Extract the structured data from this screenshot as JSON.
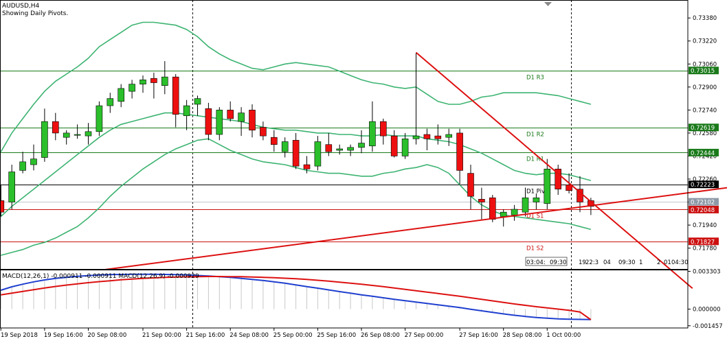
{
  "header": {
    "symbol": "AUDUSD,H4",
    "subtitle": "Showing Daily Pivots."
  },
  "macd_label": "MACD(12,26,1) -0.000911 -0.000911 MACD(12,26,9) -0.000929",
  "colors": {
    "bull": "#2bbf2b",
    "bear": "#ee1010",
    "bollinger": "#3cb371",
    "trend": "#dd1010",
    "resistance": "#1a7a1a",
    "support": "#cc1010",
    "pivot": "#000000",
    "macd_main": "#1f3fcf",
    "macd_signal": "#dd1010",
    "price_tag": "#8f9aa8"
  },
  "chart_data": [
    {
      "type": "candlestick",
      "title": "AUDUSD,H4",
      "ylim": [
        0.71635,
        0.73505
      ],
      "y_ticks": [
        "0.73380",
        "0.73220",
        "0.73060",
        "0.72900",
        "0.72740",
        "0.72580",
        "0.72420",
        "0.72260",
        "0.72100",
        "0.71940",
        "0.71780"
      ],
      "x_labels": [
        "19 Sep 2018",
        "19 Sep 16:00",
        "20 Sep 08:00",
        "21 Sep 00:00",
        "21 Sep 16:00",
        "24 Sep 08:00",
        "25 Sep 00:00",
        "25 Sep 16:00",
        "26 Sep 08:00",
        "27 Sep 00:00",
        "27 Sep 16:00",
        "28 Sep 08:00",
        "1 Oct 00:00"
      ],
      "candles": [
        {
          "o": 0.7211,
          "h": 0.7222,
          "l": 0.72,
          "c": 0.7203
        },
        {
          "o": 0.721,
          "h": 0.7236,
          "l": 0.7205,
          "c": 0.7231
        },
        {
          "o": 0.7232,
          "h": 0.7245,
          "l": 0.723,
          "c": 0.7238
        },
        {
          "o": 0.7236,
          "h": 0.725,
          "l": 0.7232,
          "c": 0.724
        },
        {
          "o": 0.7241,
          "h": 0.7275,
          "l": 0.7238,
          "c": 0.7266
        },
        {
          "o": 0.7266,
          "h": 0.7272,
          "l": 0.7253,
          "c": 0.7258
        },
        {
          "o": 0.7255,
          "h": 0.726,
          "l": 0.725,
          "c": 0.7258
        },
        {
          "o": 0.7257,
          "h": 0.7264,
          "l": 0.7254,
          "c": 0.7257
        },
        {
          "o": 0.7256,
          "h": 0.7265,
          "l": 0.725,
          "c": 0.7259
        },
        {
          "o": 0.7259,
          "h": 0.728,
          "l": 0.7256,
          "c": 0.7277
        },
        {
          "o": 0.7277,
          "h": 0.7286,
          "l": 0.7272,
          "c": 0.7282
        },
        {
          "o": 0.728,
          "h": 0.7292,
          "l": 0.7276,
          "c": 0.7289
        },
        {
          "o": 0.7287,
          "h": 0.7295,
          "l": 0.7282,
          "c": 0.7292
        },
        {
          "o": 0.7292,
          "h": 0.7298,
          "l": 0.7286,
          "c": 0.7295
        },
        {
          "o": 0.7296,
          "h": 0.73,
          "l": 0.7282,
          "c": 0.7293
        },
        {
          "o": 0.7291,
          "h": 0.7308,
          "l": 0.7285,
          "c": 0.7297
        },
        {
          "o": 0.7297,
          "h": 0.7299,
          "l": 0.7262,
          "c": 0.7271
        },
        {
          "o": 0.727,
          "h": 0.7281,
          "l": 0.726,
          "c": 0.7277
        },
        {
          "o": 0.7278,
          "h": 0.7284,
          "l": 0.727,
          "c": 0.7282
        },
        {
          "o": 0.7275,
          "h": 0.7279,
          "l": 0.7253,
          "c": 0.7257
        },
        {
          "o": 0.7257,
          "h": 0.7276,
          "l": 0.7253,
          "c": 0.7274
        },
        {
          "o": 0.7274,
          "h": 0.728,
          "l": 0.7266,
          "c": 0.7268
        },
        {
          "o": 0.7266,
          "h": 0.7276,
          "l": 0.7256,
          "c": 0.7272
        },
        {
          "o": 0.7274,
          "h": 0.7278,
          "l": 0.7255,
          "c": 0.726
        },
        {
          "o": 0.7262,
          "h": 0.7266,
          "l": 0.7253,
          "c": 0.7256
        },
        {
          "o": 0.7255,
          "h": 0.726,
          "l": 0.7245,
          "c": 0.725
        },
        {
          "o": 0.7245,
          "h": 0.7255,
          "l": 0.7241,
          "c": 0.7252
        },
        {
          "o": 0.7253,
          "h": 0.7258,
          "l": 0.7233,
          "c": 0.7235
        },
        {
          "o": 0.7236,
          "h": 0.7242,
          "l": 0.723,
          "c": 0.7233
        },
        {
          "o": 0.7235,
          "h": 0.7256,
          "l": 0.7232,
          "c": 0.7252
        },
        {
          "o": 0.725,
          "h": 0.7258,
          "l": 0.7242,
          "c": 0.7245
        },
        {
          "o": 0.7246,
          "h": 0.725,
          "l": 0.7243,
          "c": 0.7247
        },
        {
          "o": 0.7246,
          "h": 0.725,
          "l": 0.7242,
          "c": 0.7248
        },
        {
          "o": 0.7248,
          "h": 0.726,
          "l": 0.7244,
          "c": 0.7251
        },
        {
          "o": 0.7249,
          "h": 0.728,
          "l": 0.7245,
          "c": 0.7266
        },
        {
          "o": 0.7266,
          "h": 0.7268,
          "l": 0.725,
          "c": 0.7256
        },
        {
          "o": 0.7256,
          "h": 0.726,
          "l": 0.7241,
          "c": 0.7242
        },
        {
          "o": 0.7242,
          "h": 0.7258,
          "l": 0.724,
          "c": 0.7254
        },
        {
          "o": 0.7254,
          "h": 0.7314,
          "l": 0.725,
          "c": 0.7256
        },
        {
          "o": 0.7257,
          "h": 0.7261,
          "l": 0.7246,
          "c": 0.7254
        },
        {
          "o": 0.7256,
          "h": 0.7264,
          "l": 0.725,
          "c": 0.7254
        },
        {
          "o": 0.7255,
          "h": 0.7261,
          "l": 0.7249,
          "c": 0.7257
        },
        {
          "o": 0.7258,
          "h": 0.7261,
          "l": 0.7222,
          "c": 0.7232
        },
        {
          "o": 0.723,
          "h": 0.7236,
          "l": 0.7205,
          "c": 0.7214
        },
        {
          "o": 0.7212,
          "h": 0.722,
          "l": 0.7198,
          "c": 0.721
        },
        {
          "o": 0.7213,
          "h": 0.7215,
          "l": 0.7196,
          "c": 0.7198
        },
        {
          "o": 0.72,
          "h": 0.7205,
          "l": 0.7193,
          "c": 0.7203
        },
        {
          "o": 0.7201,
          "h": 0.7208,
          "l": 0.7197,
          "c": 0.7205
        },
        {
          "o": 0.7203,
          "h": 0.722,
          "l": 0.72,
          "c": 0.7213
        },
        {
          "o": 0.721,
          "h": 0.7216,
          "l": 0.7205,
          "c": 0.7213
        },
        {
          "o": 0.7209,
          "h": 0.724,
          "l": 0.7205,
          "c": 0.7233
        },
        {
          "o": 0.7233,
          "h": 0.7236,
          "l": 0.7215,
          "c": 0.7219
        },
        {
          "o": 0.7222,
          "h": 0.723,
          "l": 0.7216,
          "c": 0.7218
        },
        {
          "o": 0.7219,
          "h": 0.7228,
          "l": 0.7203,
          "c": 0.721
        },
        {
          "o": 0.7211,
          "h": 0.7213,
          "l": 0.7201,
          "c": 0.7207
        }
      ],
      "bollinger": {
        "upper": [
          0.7245,
          0.7258,
          0.7268,
          0.7278,
          0.7287,
          0.7294,
          0.7299,
          0.7304,
          0.731,
          0.7318,
          0.7323,
          0.7328,
          0.7333,
          0.7335,
          0.7335,
          0.7334,
          0.7333,
          0.733,
          0.7325,
          0.7318,
          0.7313,
          0.7309,
          0.7306,
          0.7303,
          0.7302,
          0.7304,
          0.7306,
          0.7307,
          0.7306,
          0.7305,
          0.7304,
          0.7301,
          0.7298,
          0.7295,
          0.7293,
          0.7292,
          0.729,
          0.7289,
          0.729,
          0.7285,
          0.728,
          0.7278,
          0.7278,
          0.728,
          0.7283,
          0.7284,
          0.7286,
          0.7286,
          0.7286,
          0.7286,
          0.7285,
          0.7284,
          0.7282,
          0.728,
          0.7278
        ],
        "middle": [
          0.72,
          0.7207,
          0.7213,
          0.7219,
          0.7225,
          0.7231,
          0.7237,
          0.7243,
          0.7249,
          0.7255,
          0.726,
          0.7264,
          0.7266,
          0.7268,
          0.727,
          0.7272,
          0.7272,
          0.7271,
          0.727,
          0.7269,
          0.7268,
          0.7267,
          0.7266,
          0.7264,
          0.7262,
          0.7261,
          0.726,
          0.726,
          0.7259,
          0.7258,
          0.7258,
          0.7257,
          0.7257,
          0.7256,
          0.7256,
          0.7257,
          0.7256,
          0.7256,
          0.7256,
          0.7254,
          0.7253,
          0.7252,
          0.725,
          0.7247,
          0.7244,
          0.724,
          0.7236,
          0.7232,
          0.723,
          0.7229,
          0.723,
          0.723,
          0.7229,
          0.7227,
          0.7225
        ],
        "lower": [
          0.7173,
          0.7175,
          0.7177,
          0.718,
          0.7182,
          0.7185,
          0.7189,
          0.7193,
          0.7199,
          0.7206,
          0.7214,
          0.7221,
          0.7227,
          0.7233,
          0.7238,
          0.7243,
          0.7247,
          0.725,
          0.7253,
          0.7254,
          0.725,
          0.7246,
          0.7243,
          0.724,
          0.7238,
          0.7237,
          0.7236,
          0.7234,
          0.7232,
          0.7231,
          0.723,
          0.723,
          0.7229,
          0.7228,
          0.7228,
          0.723,
          0.7231,
          0.7233,
          0.7234,
          0.7236,
          0.7234,
          0.723,
          0.7222,
          0.7214,
          0.7208,
          0.7204,
          0.7201,
          0.72,
          0.7199,
          0.7198,
          0.7197,
          0.7196,
          0.7195,
          0.7193,
          0.7191
        ]
      },
      "pivot_levels": [
        {
          "label": "D1 R3",
          "value": 0.73015,
          "tag": "0.73015",
          "role": "resistance"
        },
        {
          "label": "D1 R2",
          "value": 0.72619,
          "tag": "0.72619",
          "role": "resistance"
        },
        {
          "label": "D1 R1",
          "value": 0.72444,
          "tag": "0.72444",
          "role": "resistance"
        },
        {
          "label": "D1 Pivot",
          "value": 0.72223,
          "tag": "0.72223",
          "role": "pivot"
        },
        {
          "label": "D1 S1",
          "value": 0.72048,
          "tag": "0.72048",
          "role": "support"
        },
        {
          "label": "D1 S2",
          "value": 0.71827,
          "tag": "0.71827",
          "role": "support"
        }
      ],
      "current_price": {
        "value": 0.72102,
        "tag": "0.72102"
      },
      "trendlines": [
        {
          "from": [
            38,
            0.7314
          ],
          "to": [
            63.3,
            0.715
          ]
        },
        {
          "from": [
            9.5,
            0.7163
          ],
          "to": [
            69.5,
            0.7223
          ]
        }
      ],
      "period_separators": [
        17.5,
        52.2
      ],
      "time_markers": [
        "03:",
        "04:",
        "09:30",
        "19",
        "22:3",
        "04",
        "09:30",
        "1",
        "2",
        "01",
        "04:30"
      ]
    },
    {
      "type": "line",
      "title": "MACD(12,26,1) -0.000911 -0.000911 MACD(12,26,9) -0.000929",
      "ylim": [
        -0.00165,
        0.00345
      ],
      "y_ticks": [
        "0.003303",
        "0.000000",
        "-0.001457"
      ],
      "series": [
        {
          "name": "MACD(12,26,1)",
          "role": "main",
          "values": [
            0.00165,
            0.00195,
            0.00218,
            0.00238,
            0.00255,
            0.00268,
            0.00278,
            0.00287,
            0.00293,
            0.00298,
            0.00301,
            0.00303,
            0.00304,
            0.00305,
            0.00305,
            0.00303,
            0.00301,
            0.00298,
            0.00294,
            0.00289,
            0.00283,
            0.00277,
            0.00269,
            0.0026,
            0.0025,
            0.00238,
            0.00226,
            0.00212,
            0.00197,
            0.00183,
            0.00168,
            0.00153,
            0.00139,
            0.00125,
            0.00112,
            0.00099,
            0.00086,
            0.00073,
            0.00061,
            0.00049,
            0.00037,
            0.00026,
            0.00013,
            -1e-05,
            -0.00015,
            -0.00029,
            -0.00042,
            -0.00054,
            -0.00064,
            -0.00073,
            -0.0008,
            -0.00085,
            -0.00088,
            -0.0009,
            -0.00091
          ]
        },
        {
          "name": "MACD(12,26,9)",
          "role": "signal",
          "values": [
            0.00125,
            0.0014,
            0.00155,
            0.0017,
            0.00185,
            0.00198,
            0.0021,
            0.00221,
            0.00231,
            0.0024,
            0.00248,
            0.00256,
            0.00262,
            0.00268,
            0.00273,
            0.00277,
            0.0028,
            0.00282,
            0.00284,
            0.00285,
            0.00285,
            0.00284,
            0.00283,
            0.00281,
            0.00278,
            0.00275,
            0.0027,
            0.00265,
            0.00259,
            0.00252,
            0.00244,
            0.00236,
            0.00227,
            0.00217,
            0.00207,
            0.00196,
            0.00185,
            0.00173,
            0.00161,
            0.00149,
            0.00137,
            0.00125,
            0.00112,
            0.00099,
            0.00086,
            0.00072,
            0.00058,
            0.00045,
            0.00033,
            0.00021,
            0.0001,
            0.0,
            -0.0001,
            -0.00025,
            -0.00093
          ]
        }
      ]
    }
  ]
}
